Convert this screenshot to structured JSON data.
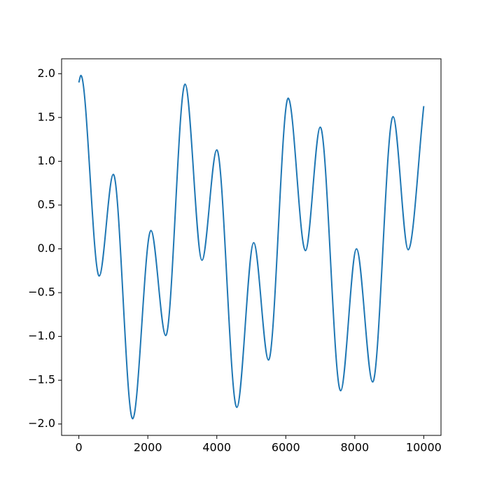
{
  "chart_data": {
    "type": "line",
    "x": [
      0,
      60,
      590,
      1000,
      1560,
      2090,
      2520,
      3080,
      3570,
      4000,
      4580,
      5070,
      5500,
      6070,
      6570,
      7000,
      7590,
      8050,
      8520,
      9110,
      9550,
      10000
    ],
    "series": [
      {
        "color": "#1f77b4",
        "values": [
          1.9,
          1.98,
          -0.31,
          0.85,
          -1.94,
          0.21,
          -0.99,
          1.88,
          -0.13,
          1.13,
          -1.81,
          0.07,
          -1.27,
          1.72,
          -0.02,
          1.39,
          -1.62,
          0.0,
          -1.52,
          1.51,
          -0.01,
          1.63
        ]
      }
    ],
    "xlim": [
      -500,
      10500
    ],
    "ylim": [
      -2.13,
      2.17
    ],
    "xticks": [
      0,
      2000,
      4000,
      6000,
      8000,
      10000
    ],
    "yticks": [
      {
        "value": -2.0,
        "label": "−2.0"
      },
      {
        "value": -1.5,
        "label": "−1.5"
      },
      {
        "value": -1.0,
        "label": "−1.0"
      },
      {
        "value": -0.5,
        "label": "−0.5"
      },
      {
        "value": 0.0,
        "label": "0.0"
      },
      0.5,
      {
        "value": 1.0,
        "label": "1.0"
      },
      1.5,
      {
        "value": 2.0,
        "label": "2.0"
      }
    ]
  }
}
